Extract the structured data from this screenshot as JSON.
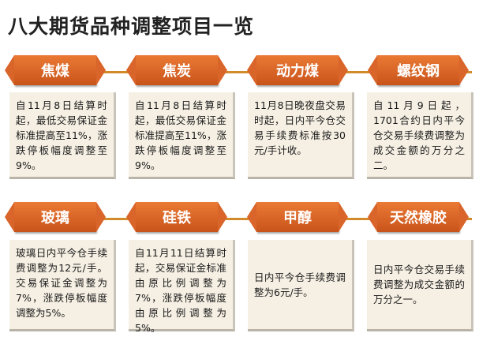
{
  "title": "八大期货品种调整项目一览",
  "items": [
    {
      "name": "焦煤",
      "text": "自11月8日结算时起，最低交易保证金标准提高至11%，涨跌停板幅度调整至9%。"
    },
    {
      "name": "焦炭",
      "text": "自11月8日结算时起，最低交易保证金标准提高至11%，涨跌停板幅度调整至9%。"
    },
    {
      "name": "动力煤",
      "text": "11月8日晚夜盘交易时起，日内平今仓交易手续费标准按30元/手计收。"
    },
    {
      "name": "螺纹钢",
      "text": "自11月9日起，1701合约日内平今仓交易手续费调整为成交金额的万分之二。"
    },
    {
      "name": "玻璃",
      "text": "玻璃日内平今仓手续费调整为12元/手。交易保证金调整为7%，涨跌停板幅度调整为5%。"
    },
    {
      "name": "硅铁",
      "text": "自11月11日结算时起，交易保证金标准由原比例调整为7%，涨跌停板幅度由原比例调整为5%。"
    },
    {
      "name": "甲醇",
      "text": "日内平今仓手续费调整为6元/手。"
    },
    {
      "name": "天然橡胶",
      "text": "日内平今仓交易手续费调整为成交金额的万分之一。"
    }
  ]
}
